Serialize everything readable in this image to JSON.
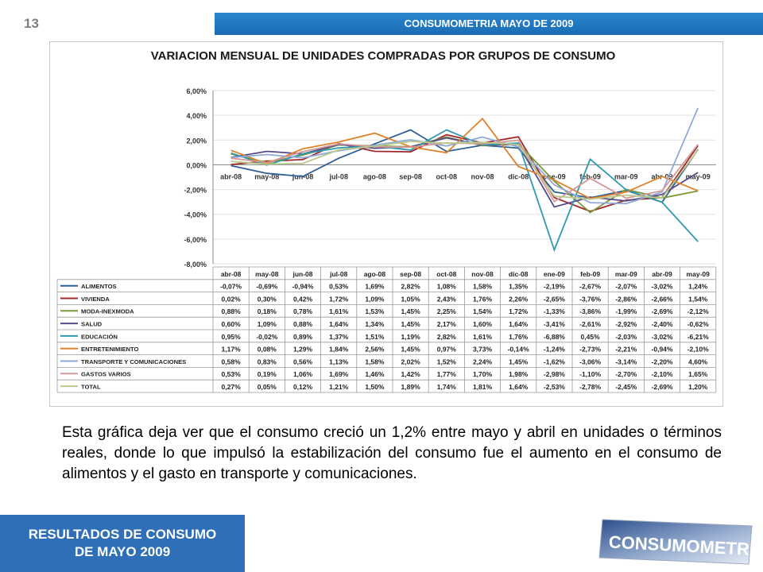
{
  "page_number": "13",
  "header_title": "CONSUMOMETRIA MAYO DE 2009",
  "footer": {
    "line1": "RESULTADOS DE CONSUMO",
    "line2": "DE MAYO 2009"
  },
  "logo_text": "CONSUMOMETRIA",
  "body_text": "Esta gráfica deja ver que el consumo creció un 1,2% entre mayo y abril en unidades o términos reales, donde lo que impulsó la estabilización del consumo fue el aumento en el consumo de alimentos y el gasto en transporte y comunicaciones.",
  "chart_data": {
    "type": "line",
    "title": "VARIACION MENSUAL DE UNIDADES COMPRADAS POR GRUPOS DE CONSUMO",
    "ylim": [
      -8,
      6
    ],
    "y_ticks": [
      "6,00%",
      "4,00%",
      "2,00%",
      "0,00%",
      "-2,00%",
      "-4,00%",
      "-6,00%",
      "-8,00%"
    ],
    "categories": [
      "abr-08",
      "may-08",
      "jun-08",
      "jul-08",
      "ago-08",
      "sep-08",
      "oct-08",
      "nov-08",
      "dic-08",
      "ene-09",
      "feb-09",
      "mar-09",
      "abr-09",
      "may-09"
    ],
    "grid": true,
    "legend": "data-table",
    "series": [
      {
        "name": "ALIMENTOS",
        "color": "#2e5f96",
        "values": [
          -0.07,
          -0.69,
          -0.94,
          0.53,
          1.69,
          2.82,
          1.08,
          1.58,
          1.35,
          -2.19,
          -2.67,
          -2.07,
          -3.02,
          1.24
        ],
        "labels": [
          "-0,07%",
          "-0,69%",
          "-0,94%",
          "0,53%",
          "1,69%",
          "2,82%",
          "1,08%",
          "1,58%",
          "1,35%",
          "-2,19%",
          "-2,67%",
          "-2,07%",
          "-3,02%",
          "1,24%"
        ]
      },
      {
        "name": "VIVIENDA",
        "color": "#a0282b",
        "values": [
          0.02,
          0.3,
          0.42,
          1.72,
          1.09,
          1.05,
          2.43,
          1.76,
          2.26,
          -2.65,
          -3.76,
          -2.86,
          -2.66,
          1.54
        ],
        "labels": [
          "0,02%",
          "0,30%",
          "0,42%",
          "1,72%",
          "1,09%",
          "1,05%",
          "2,43%",
          "1,76%",
          "2,26%",
          "-2,65%",
          "-3,76%",
          "-2,86%",
          "-2,66%",
          "1,54%"
        ]
      },
      {
        "name": "MODA-INEXMODA",
        "color": "#7a9a3a",
        "values": [
          0.88,
          0.18,
          0.78,
          1.61,
          1.53,
          1.45,
          2.25,
          1.54,
          1.72,
          -1.33,
          -3.86,
          -1.99,
          -2.69,
          -2.12
        ],
        "labels": [
          "0,88%",
          "0,18%",
          "0,78%",
          "1,61%",
          "1,53%",
          "1,45%",
          "2,25%",
          "1,54%",
          "1,72%",
          "-1,33%",
          "-3,86%",
          "-1,99%",
          "-2,69%",
          "-2,12%"
        ]
      },
      {
        "name": "SALUD",
        "color": "#5a4a8a",
        "values": [
          0.6,
          1.09,
          0.88,
          1.64,
          1.34,
          1.45,
          2.17,
          1.6,
          1.64,
          -3.41,
          -2.61,
          -2.92,
          -2.4,
          -0.62
        ],
        "labels": [
          "0,60%",
          "1,09%",
          "0,88%",
          "1,64%",
          "1,34%",
          "1,45%",
          "2,17%",
          "1,60%",
          "1,64%",
          "-3,41%",
          "-2,61%",
          "-2,92%",
          "-2,40%",
          "-0,62%"
        ]
      },
      {
        "name": "EDUCACIÓN",
        "color": "#2f9aae",
        "values": [
          0.95,
          -0.02,
          0.89,
          1.37,
          1.51,
          1.19,
          2.82,
          1.61,
          1.76,
          -6.88,
          0.45,
          -2.03,
          -3.02,
          -6.21
        ],
        "labels": [
          "0,95%",
          "-0,02%",
          "0,89%",
          "1,37%",
          "1,51%",
          "1,19%",
          "2,82%",
          "1,61%",
          "1,76%",
          "-6,88%",
          "0,45%",
          "-2,03%",
          "-3,02%",
          "-6,21%"
        ]
      },
      {
        "name": "ENTRETENIMIENTO",
        "color": "#e0822a",
        "values": [
          1.17,
          0.08,
          1.29,
          1.84,
          2.56,
          1.45,
          0.97,
          3.73,
          -0.14,
          -1.24,
          -2.73,
          -2.21,
          -0.94,
          -2.1
        ],
        "labels": [
          "1,17%",
          "0,08%",
          "1,29%",
          "1,84%",
          "2,56%",
          "1,45%",
          "0,97%",
          "3,73%",
          "-0,14%",
          "-1,24%",
          "-2,73%",
          "-2,21%",
          "-0,94%",
          "-2,10%"
        ]
      },
      {
        "name": "TRANSPORTE Y COMUNICACIONES",
        "color": "#8ea9d8",
        "values": [
          0.58,
          0.83,
          0.56,
          1.13,
          1.58,
          2.02,
          1.52,
          2.24,
          1.45,
          -1.62,
          -3.06,
          -3.14,
          -2.2,
          4.6
        ],
        "labels": [
          "0,58%",
          "0,83%",
          "0,56%",
          "1,13%",
          "1,58%",
          "2,02%",
          "1,52%",
          "2,24%",
          "1,45%",
          "-1,62%",
          "-3,06%",
          "-3,14%",
          "-2,20%",
          "4,60%"
        ]
      },
      {
        "name": "GASTOS VARIOS",
        "color": "#d49a98",
        "values": [
          0.53,
          0.19,
          1.06,
          1.69,
          1.46,
          1.42,
          1.77,
          1.7,
          1.98,
          -2.98,
          -1.1,
          -2.7,
          -2.1,
          1.65
        ],
        "labels": [
          "0,53%",
          "0,19%",
          "1,06%",
          "1,69%",
          "1,46%",
          "1,42%",
          "1,77%",
          "1,70%",
          "1,98%",
          "-2,98%",
          "-1,10%",
          "-2,70%",
          "-2,10%",
          "1,65%"
        ]
      },
      {
        "name": "TOTAL",
        "color": "#b8c98a",
        "values": [
          0.27,
          0.05,
          0.12,
          1.21,
          1.5,
          1.89,
          1.74,
          1.81,
          1.64,
          -2.53,
          -2.78,
          -2.45,
          -2.69,
          1.2
        ],
        "labels": [
          "0,27%",
          "0,05%",
          "0,12%",
          "1,21%",
          "1,50%",
          "1,89%",
          "1,74%",
          "1,81%",
          "1,64%",
          "-2,53%",
          "-2,78%",
          "-2,45%",
          "-2,69%",
          "1,20%"
        ]
      }
    ]
  }
}
